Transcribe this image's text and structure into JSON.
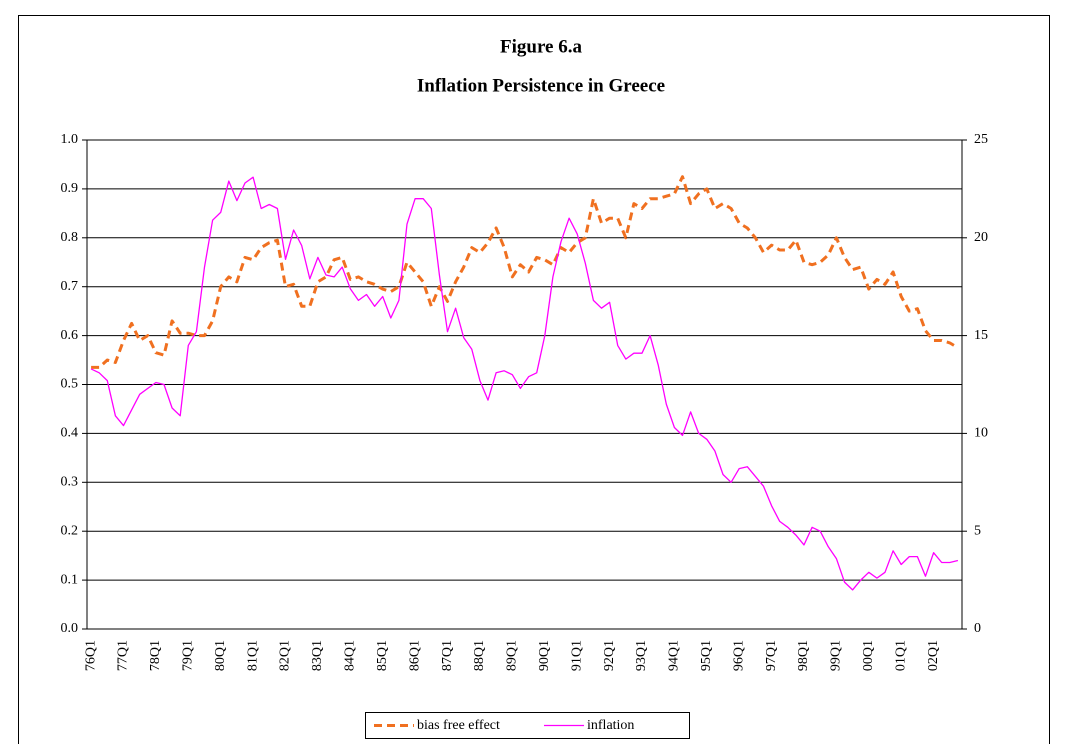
{
  "chart_data": {
    "type": "line",
    "title": "Figure 6.a",
    "subtitle": "Inflation Persistence in Greece",
    "categories": [
      "76Q1",
      null,
      null,
      null,
      "77Q1",
      null,
      null,
      null,
      "78Q1",
      null,
      null,
      null,
      "79Q1",
      null,
      null,
      null,
      "80Q1",
      null,
      null,
      null,
      "81Q1",
      null,
      null,
      null,
      "82Q1",
      null,
      null,
      null,
      "83Q1",
      null,
      null,
      null,
      "84Q1",
      null,
      null,
      null,
      "85Q1",
      null,
      null,
      null,
      "86Q1",
      null,
      null,
      null,
      "87Q1",
      null,
      null,
      null,
      "88Q1",
      null,
      null,
      null,
      "89Q1",
      null,
      null,
      null,
      "90Q1",
      null,
      null,
      null,
      "91Q1",
      null,
      null,
      null,
      "92Q1",
      null,
      null,
      null,
      "93Q1",
      null,
      null,
      null,
      "94Q1",
      null,
      null,
      null,
      "95Q1",
      null,
      null,
      null,
      "96Q1",
      null,
      null,
      null,
      "97Q1",
      null,
      null,
      null,
      "98Q1",
      null,
      null,
      null,
      "99Q1",
      null,
      null,
      null,
      "00Q1",
      null,
      null,
      null,
      "01Q1",
      null,
      null,
      null,
      "02Q1",
      null,
      null,
      null
    ],
    "series": [
      {
        "name": "bias free effect",
        "color": "#f07020",
        "dashed": true,
        "axis": "y",
        "values": [
          0.535,
          0.535,
          0.55,
          0.545,
          0.59,
          0.625,
          0.59,
          0.6,
          0.565,
          0.56,
          0.63,
          0.605,
          0.605,
          0.6,
          0.6,
          0.63,
          0.7,
          0.72,
          0.71,
          0.76,
          0.755,
          0.78,
          0.79,
          0.795,
          0.7,
          0.705,
          0.66,
          0.66,
          0.71,
          0.72,
          0.755,
          0.76,
          0.715,
          0.72,
          0.71,
          0.705,
          0.695,
          0.69,
          0.7,
          0.75,
          0.73,
          0.71,
          0.66,
          0.7,
          0.67,
          0.71,
          0.74,
          0.78,
          0.77,
          0.79,
          0.82,
          0.78,
          0.72,
          0.745,
          0.73,
          0.76,
          0.755,
          0.745,
          0.78,
          0.77,
          0.79,
          0.8,
          0.88,
          0.83,
          0.84,
          0.84,
          0.8,
          0.87,
          0.86,
          0.88,
          0.88,
          0.885,
          0.89,
          0.925,
          0.87,
          0.89,
          0.9,
          0.86,
          0.87,
          0.86,
          0.83,
          0.82,
          0.8,
          0.77,
          0.785,
          0.775,
          0.775,
          0.795,
          0.75,
          0.745,
          0.75,
          0.765,
          0.8,
          0.76,
          0.735,
          0.74,
          0.695,
          0.715,
          0.705,
          0.73,
          0.68,
          0.65,
          0.655,
          0.61,
          0.59,
          0.59,
          0.585,
          0.575
        ]
      },
      {
        "name": "inflation",
        "color": "#ff00ff",
        "dashed": false,
        "axis": "y2",
        "values": [
          13.3,
          13.1,
          12.7,
          10.9,
          10.4,
          11.2,
          12,
          12.3,
          12.6,
          12.5,
          11.3,
          10.9,
          14.5,
          15.2,
          18.5,
          20.9,
          21.3,
          22.9,
          21.9,
          22.8,
          23.1,
          21.5,
          21.7,
          21.5,
          18.9,
          20.4,
          19.6,
          17.9,
          19,
          18.1,
          18,
          18.5,
          17.4,
          16.8,
          17.1,
          16.5,
          17,
          15.9,
          16.8,
          20.7,
          22,
          22,
          21.5,
          18.1,
          15.2,
          16.4,
          14.9,
          14.3,
          12.7,
          11.7,
          13.1,
          13.2,
          13,
          12.3,
          12.9,
          13.1,
          15,
          18,
          19.8,
          21,
          20.2,
          18.7,
          16.8,
          16.4,
          16.7,
          14.5,
          13.8,
          14.1,
          14.1,
          15,
          13.5,
          11.5,
          10.3,
          9.9,
          11.1,
          10,
          9.7,
          9.1,
          7.9,
          7.5,
          8.2,
          8.3,
          7.8,
          7.3,
          6.3,
          5.5,
          5.2,
          4.8,
          4.3,
          5.2,
          5,
          4.2,
          3.6,
          2.4,
          2,
          2.5,
          2.9,
          2.6,
          2.9,
          4,
          3.3,
          3.7,
          3.7,
          2.7,
          3.9,
          3.4,
          3.4,
          3.5
        ]
      }
    ],
    "ylim": [
      0,
      1
    ],
    "yticks": [
      {
        "value": 0,
        "label": "0.0"
      },
      {
        "value": 0.1,
        "label": "0.1"
      },
      {
        "value": 0.2,
        "label": "0.2"
      },
      {
        "value": 0.3,
        "label": "0.3"
      },
      {
        "value": 0.4,
        "label": "0.4"
      },
      {
        "value": 0.5,
        "label": "0.5"
      },
      {
        "value": 0.6,
        "label": "0.6"
      },
      {
        "value": 0.7,
        "label": "0.7"
      },
      {
        "value": 0.8,
        "label": "0.8"
      },
      {
        "value": 0.9,
        "label": "0.9"
      },
      {
        "value": 1,
        "label": "1.0"
      }
    ],
    "y2lim": [
      0,
      25
    ],
    "y2ticks": [
      0,
      5,
      10,
      15,
      20,
      25
    ],
    "grid": true,
    "legend_position": "bottom"
  }
}
